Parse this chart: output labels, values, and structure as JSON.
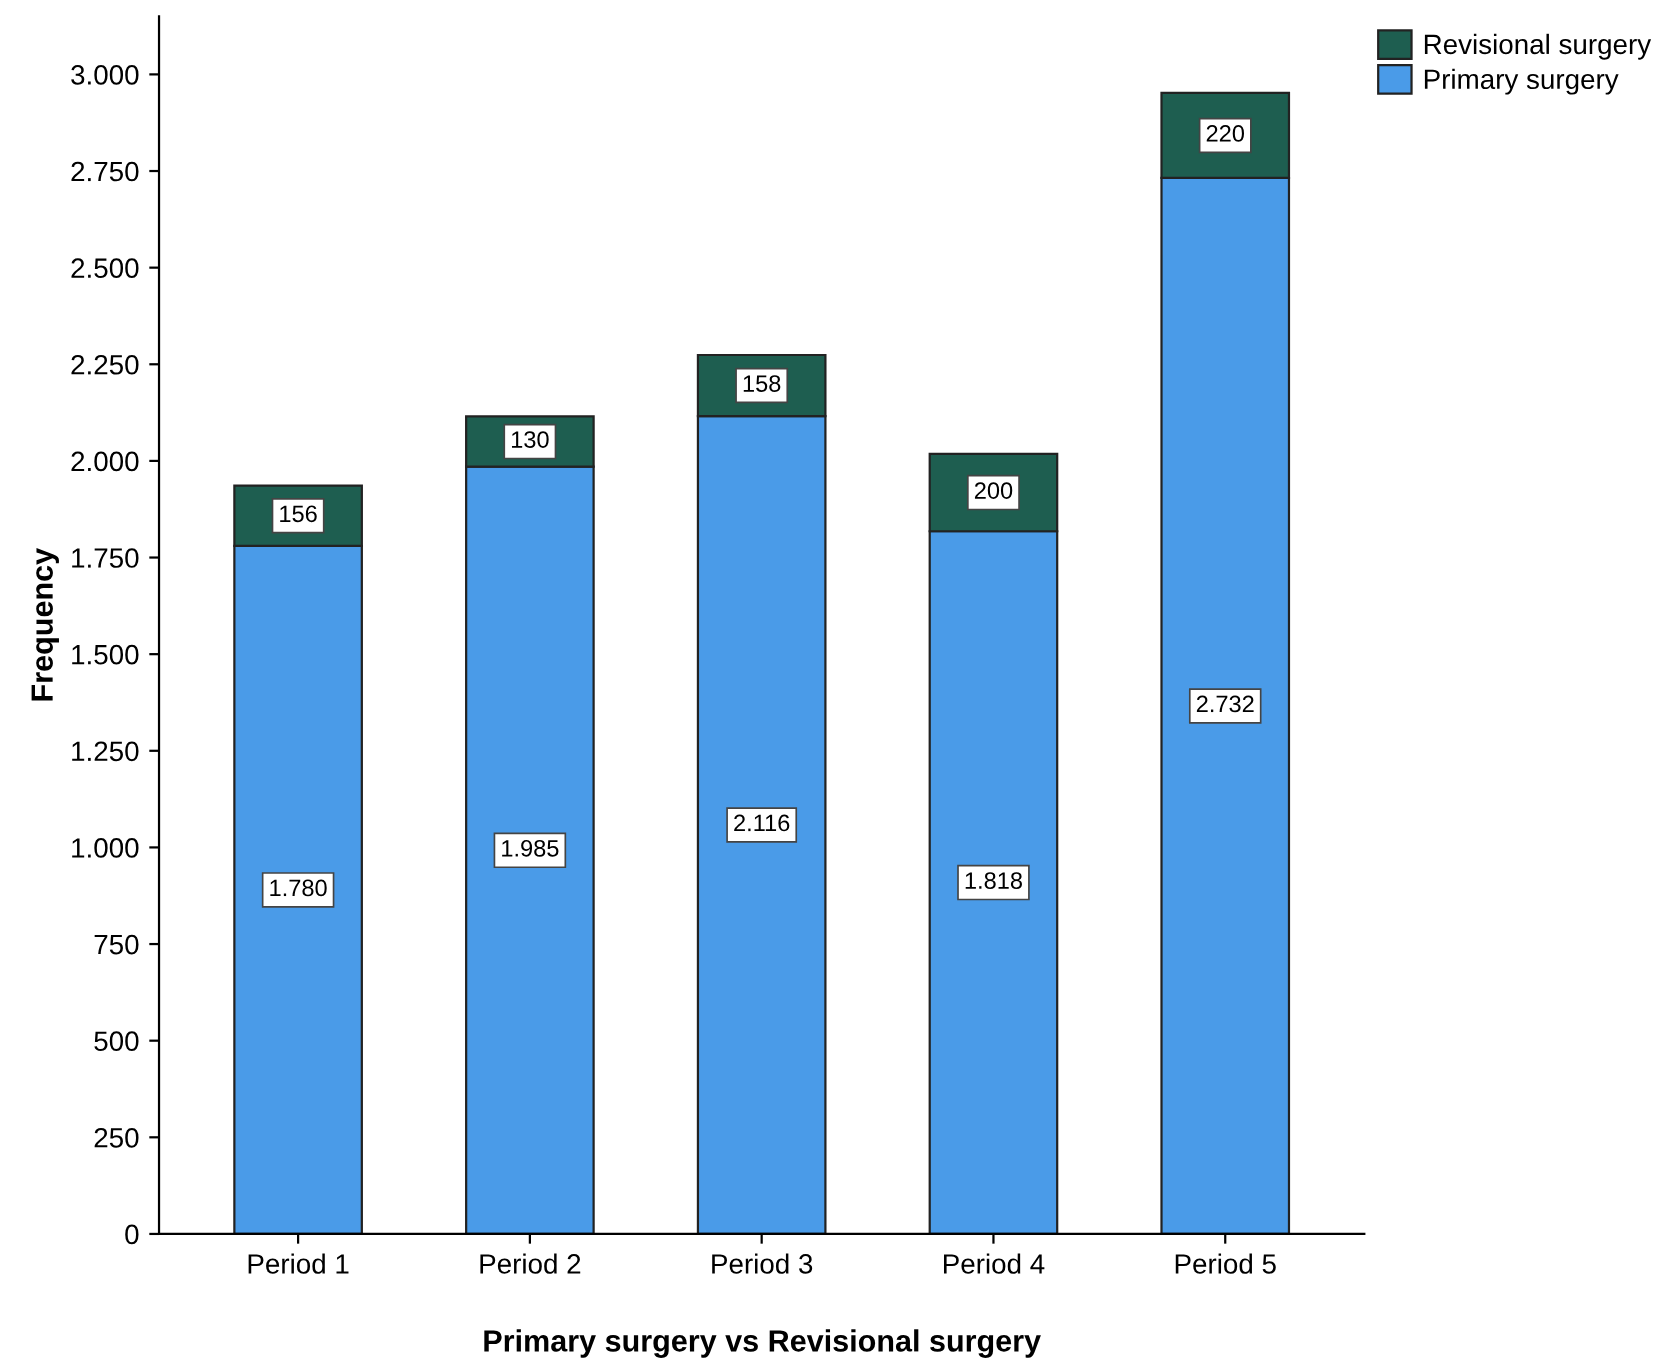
{
  "chart_data": {
    "type": "bar",
    "stacked": true,
    "xlabel": "Primary surgery vs Revisional surgery",
    "ylabel": "Frequency",
    "categories": [
      "Period 1",
      "Period 2",
      "Period 3",
      "Period 4",
      "Period 5"
    ],
    "series": [
      {
        "name": "Primary surgery",
        "color": "#4a9be8",
        "values": [
          1780,
          1985,
          2116,
          1818,
          2732
        ],
        "value_labels": [
          "1.780",
          "1.985",
          "2.116",
          "1.818",
          "2.732"
        ]
      },
      {
        "name": "Revisional surgery",
        "color": "#1e5e50",
        "values": [
          156,
          130,
          158,
          200,
          220
        ],
        "value_labels": [
          "156",
          "130",
          "158",
          "200",
          "220"
        ]
      }
    ],
    "ylim": [
      0,
      3150
    ],
    "yticks": [
      {
        "value": 0,
        "label": "0"
      },
      {
        "value": 250,
        "label": "250"
      },
      {
        "value": 500,
        "label": "500"
      },
      {
        "value": 750,
        "label": "750"
      },
      {
        "value": 1000,
        "label": "1.000"
      },
      {
        "value": 1250,
        "label": "1.250"
      },
      {
        "value": 1500,
        "label": "1.500"
      },
      {
        "value": 1750,
        "label": "1.750"
      },
      {
        "value": 2000,
        "label": "2.000"
      },
      {
        "value": 2250,
        "label": "2.250"
      },
      {
        "value": 2500,
        "label": "2.500"
      },
      {
        "value": 2750,
        "label": "2.750"
      },
      {
        "value": 3000,
        "label": "3.000"
      }
    ],
    "grid": false,
    "legend": "top right"
  }
}
